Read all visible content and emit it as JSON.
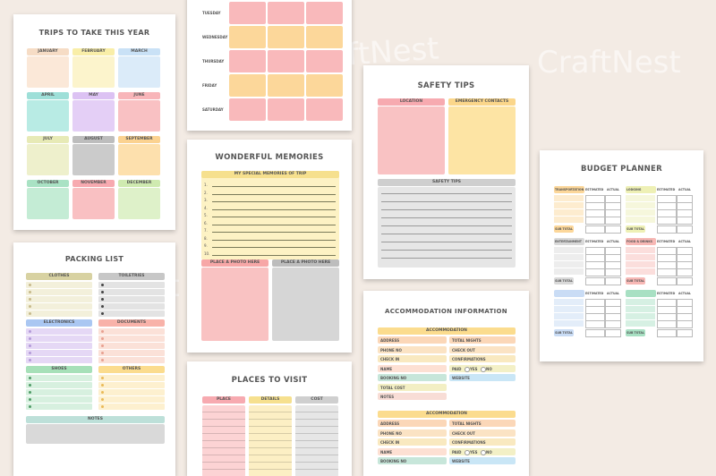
{
  "watermark": "CraftNest",
  "colors": {
    "peach": "#f8c9a8",
    "yellow": "#f6e38e",
    "blue": "#b9d8f3",
    "teal": "#a8e0cf",
    "purple": "#dcc1f2",
    "pink": "#f9b3b6",
    "cream": "#eeeebb",
    "gray": "#bfbfbf",
    "orange": "#fcd79a",
    "green": "#c6ecb0",
    "olive": "#d8dca0",
    "lilac": "#e8d3f3"
  },
  "trips": {
    "title": "TRIPS TO TAKE THIS YEAR",
    "months": [
      {
        "label": "JANUARY",
        "hdr": "#f6dcc5",
        "body": "#fbe8d8"
      },
      {
        "label": "FEBRUARY",
        "hdr": "#f9eea8",
        "body": "#fcf4cc"
      },
      {
        "label": "MARCH",
        "hdr": "#c9e1f6",
        "body": "#dbebf9"
      },
      {
        "label": "APRIL",
        "hdr": "#9edfd8",
        "body": "#b8ebe4"
      },
      {
        "label": "MAY",
        "hdr": "#dcc2f3",
        "body": "#e4cff6"
      },
      {
        "label": "JUNE",
        "hdr": "#f8b5b9",
        "body": "#f9c1c3"
      },
      {
        "label": "JULY",
        "hdr": "#e7eab6",
        "body": "#eef0cc"
      },
      {
        "label": "AUGUST",
        "hdr": "#bdbdbd",
        "body": "#cbcbcb"
      },
      {
        "label": "SEPTEMBER",
        "hdr": "#fbd290",
        "body": "#fde0ad"
      },
      {
        "label": "OCTOBER",
        "hdr": "#a9e2c4",
        "body": "#c4ecd5"
      },
      {
        "label": "NOVEMBER",
        "hdr": "#f7aab0",
        "body": "#f9c0c2"
      },
      {
        "label": "DECEMBER",
        "hdr": "#cfeab0",
        "body": "#def1c9"
      }
    ]
  },
  "weekly": {
    "days": [
      "TUESDAY",
      "WEDNESDAY",
      "THURSDAY",
      "FRIDAY",
      "SATURDAY"
    ]
  },
  "packing": {
    "title": "PACKING LIST",
    "sections": [
      {
        "label": "CLOTHES",
        "color": "#d8d2a2",
        "row": "#f3f0db",
        "dot": "#c7b98a"
      },
      {
        "label": "TOILETRIES",
        "color": "#c7c7c7",
        "row": "#e3e3e3",
        "dot": "#444444"
      },
      {
        "label": "ELECTRONICS",
        "color": "#aac7f2",
        "row": "#e5d8f5",
        "dot": "#b39ad8"
      },
      {
        "label": "DOCUMENTS",
        "color": "#f8b2a9",
        "row": "#fbe1d8",
        "dot": "#e7a090"
      },
      {
        "label": "SHOES",
        "color": "#a6e0b8",
        "row": "#d7f0df",
        "dot": "#4f9a66"
      },
      {
        "label": "OTHERS",
        "color": "#fbdc8e",
        "row": "#fdf0cf",
        "dot": "#e9b957"
      }
    ],
    "notes": "NOTES"
  },
  "memories": {
    "title": "WONDERFUL MEMORIES",
    "special": "MY SPECIAL MEMORIES OF TRIP",
    "numbers": [
      "1.",
      "2.",
      "3.",
      "4.",
      "5.",
      "6.",
      "7.",
      "8.",
      "9.",
      "10."
    ],
    "photo1": "PLACE A PHOTO HERE",
    "photo2": "PLACE A PHOTO HERE"
  },
  "places": {
    "title": "PLACES TO VISIT",
    "cols": [
      {
        "label": "PLACE",
        "hdr": "#f7aab0",
        "row": "#fcd3d4"
      },
      {
        "label": "DETAILS",
        "hdr": "#f6e08e",
        "row": "#fcefc4"
      },
      {
        "label": "COST",
        "hdr": "#cfcfcf",
        "row": "#e6e6e6"
      }
    ]
  },
  "safety": {
    "title": "SAFETY TIPS",
    "location": "LOCATION",
    "emergency": "EMERGENCY CONTACTS",
    "tips": "SAFETY TIPS"
  },
  "accommodation": {
    "title": "ACCOMMODATION INFORMATION",
    "section": "ACCOMMODATION",
    "left": [
      "ADDRESS",
      "PHONE NO",
      "CHECK IN",
      "NAME",
      "BOOKING NO",
      "TOTAL COST",
      "NOTES"
    ],
    "right": [
      "TOTAL NIGHTS",
      "CHECK OUT",
      "CONFIRMATIONS",
      "PAID",
      "WEBSITE"
    ],
    "left2": [
      "ADDRESS",
      "PHONE NO",
      "CHECK IN",
      "NAME",
      "BOOKING NO"
    ],
    "right2": [
      "TOTAL NIGHTS",
      "CHECK OUT",
      "CONFIRMATIONS",
      "PAID",
      "WEBSITE"
    ],
    "yes": "YES",
    "no": "NO"
  },
  "budget": {
    "title": "BUDGET PLANNER",
    "blocks": [
      {
        "label": "TRANSPORTATION",
        "color": "#fcd79a",
        "row": "#fdeccf"
      },
      {
        "label": "LODGING",
        "color": "#eef0b5",
        "row": "#f6f7dc"
      },
      {
        "label": "ENTERTAINMENT",
        "color": "#d9d9d9",
        "row": "#ededed"
      },
      {
        "label": "FOOD & DRINKS",
        "color": "#f7b8b5",
        "row": "#fbdedc"
      },
      {
        "label": "",
        "color": "#c9dcf5",
        "row": "#e3edf9"
      },
      {
        "label": "",
        "color": "#a8e0c3",
        "row": "#d6f0e3"
      }
    ],
    "estimated": "ESTIMATED",
    "actual": "ACTUAL",
    "subtotal": "SUB TOTAL"
  }
}
